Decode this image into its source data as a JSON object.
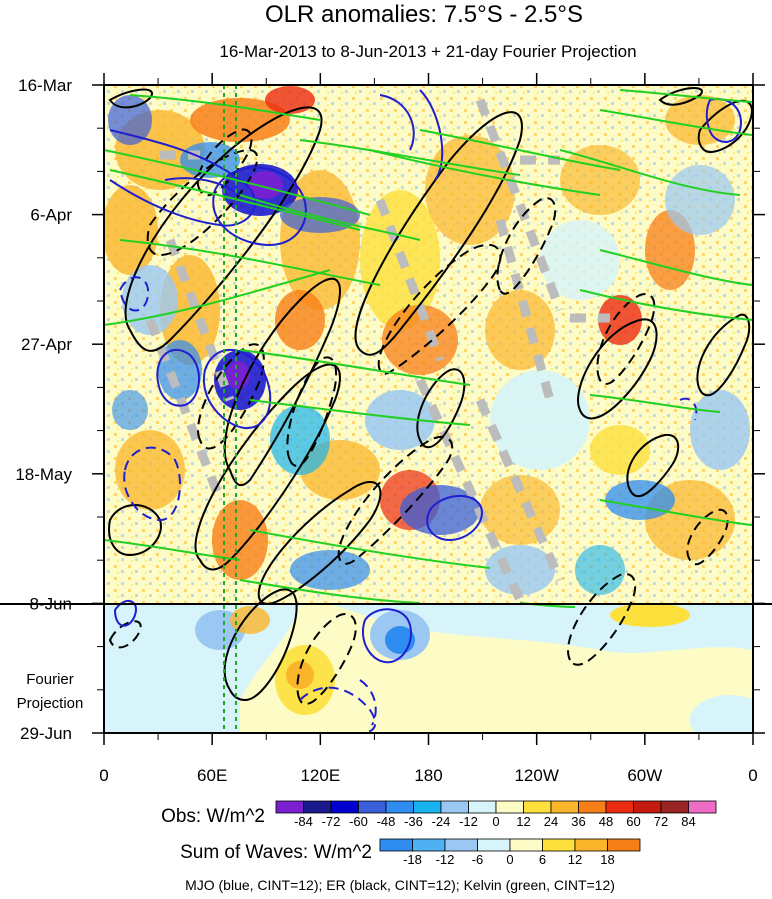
{
  "chart_data": {
    "type": "heatmap",
    "title": "OLR anomalies: 7.5°S - 2.5°S",
    "subtitle": "16-Mar-2013 to 8-Jun-2013 + 21-day Fourier Projection",
    "x_ticks": [
      "0",
      "60E",
      "120E",
      "180",
      "120W",
      "60W",
      "0"
    ],
    "y_ticks": [
      "16-Mar",
      "6-Apr",
      "27-Apr",
      "18-May",
      "8-Jun",
      "29-Jun"
    ],
    "projection_label": [
      "Fourier",
      "Projection"
    ],
    "obs_colorbar": {
      "label": "Obs: W/m^2",
      "levels": [
        "-84",
        "-72",
        "-60",
        "-48",
        "-36",
        "-24",
        "-12",
        "0",
        "12",
        "24",
        "36",
        "48",
        "60",
        "72",
        "84"
      ],
      "colors": [
        "#7b1fd0",
        "#1a1a8c",
        "#0000d2",
        "#3a5fd8",
        "#2f8cf0",
        "#19b4f0",
        "#9ac8f2",
        "#d6f4fa",
        "#fdfbc6",
        "#fde03c",
        "#fbb52a",
        "#f77f17",
        "#eb2b10",
        "#c51a10",
        "#9a2323",
        "#ef6cc6"
      ]
    },
    "waves_colorbar": {
      "label": "Sum of Waves: W/m^2",
      "levels": [
        "-18",
        "-12",
        "-6",
        "0",
        "6",
        "12",
        "18"
      ],
      "colors": [
        "#2f8cf0",
        "#4fb0f2",
        "#9ac8f2",
        "#d6f4fa",
        "#fdfbc6",
        "#fde03c",
        "#fbb52a",
        "#f77f17"
      ]
    },
    "footer": "MJO (blue, CINT=12); ER (black, CINT=12); Kelvin (green, CINT=12)",
    "contour_colors": {
      "mjo": "#1f1fd0",
      "er": "#000000",
      "kelvin": "#22d022"
    }
  }
}
